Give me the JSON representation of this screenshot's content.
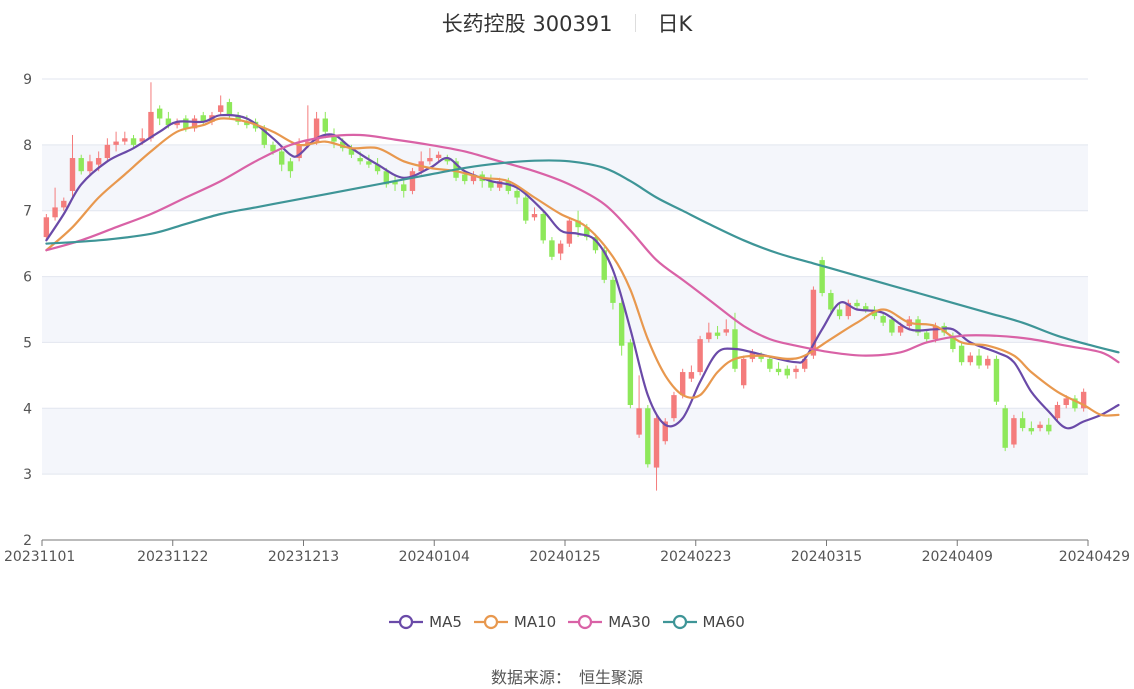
{
  "chart_data": {
    "type": "candlestick",
    "title": "长药控股 300391",
    "subtitle": "日K",
    "ylim": [
      2,
      9
    ],
    "yticks": [
      "2",
      "3",
      "4",
      "5",
      "6",
      "7",
      "8",
      "9"
    ],
    "xticks": [
      "20231101",
      "20231122",
      "20231213",
      "20240104",
      "20240125",
      "20240223",
      "20240315",
      "20240409",
      "20240429"
    ],
    "grid": true,
    "up_color": "#f47c7c",
    "down_color": "#8ee85a",
    "candles": [
      [
        6.6,
        6.9,
        6.55,
        6.95
      ],
      [
        6.9,
        7.05,
        6.85,
        7.35
      ],
      [
        7.05,
        7.15,
        7.0,
        7.2
      ],
      [
        7.3,
        7.8,
        7.2,
        8.15
      ],
      [
        7.8,
        7.6,
        7.55,
        7.85
      ],
      [
        7.6,
        7.75,
        7.55,
        7.85
      ],
      [
        7.7,
        7.8,
        7.6,
        7.9
      ],
      [
        7.8,
        8.0,
        7.75,
        8.1
      ],
      [
        8.0,
        8.05,
        7.9,
        8.2
      ],
      [
        8.05,
        8.1,
        8.0,
        8.2
      ],
      [
        8.1,
        8.0,
        7.95,
        8.15
      ],
      [
        8.05,
        8.1,
        8.0,
        8.25
      ],
      [
        8.1,
        8.5,
        8.05,
        8.95
      ],
      [
        8.55,
        8.4,
        8.3,
        8.6
      ],
      [
        8.4,
        8.3,
        8.25,
        8.5
      ],
      [
        8.3,
        8.35,
        8.25,
        8.4
      ],
      [
        8.4,
        8.25,
        8.2,
        8.45
      ],
      [
        8.25,
        8.4,
        8.2,
        8.45
      ],
      [
        8.45,
        8.35,
        8.3,
        8.5
      ],
      [
        8.35,
        8.45,
        8.3,
        8.5
      ],
      [
        8.5,
        8.6,
        8.45,
        8.75
      ],
      [
        8.65,
        8.45,
        8.4,
        8.7
      ],
      [
        8.45,
        8.35,
        8.3,
        8.5
      ],
      [
        8.35,
        8.3,
        8.25,
        8.45
      ],
      [
        8.35,
        8.25,
        8.2,
        8.4
      ],
      [
        8.25,
        8.0,
        7.95,
        8.3
      ],
      [
        8.0,
        7.9,
        7.85,
        8.05
      ],
      [
        7.9,
        7.7,
        7.6,
        7.95
      ],
      [
        7.75,
        7.6,
        7.5,
        7.8
      ],
      [
        7.8,
        8.0,
        7.75,
        8.1
      ],
      [
        8.0,
        8.05,
        7.95,
        8.6
      ],
      [
        8.05,
        8.4,
        8.0,
        8.5
      ],
      [
        8.4,
        8.2,
        8.1,
        8.5
      ],
      [
        8.15,
        8.05,
        7.95,
        8.25
      ],
      [
        8.05,
        7.95,
        7.9,
        8.1
      ],
      [
        7.95,
        7.85,
        7.8,
        8.0
      ],
      [
        7.8,
        7.75,
        7.7,
        7.9
      ],
      [
        7.75,
        7.7,
        7.65,
        7.85
      ],
      [
        7.7,
        7.6,
        7.55,
        7.8
      ],
      [
        7.6,
        7.4,
        7.35,
        7.65
      ],
      [
        7.45,
        7.4,
        7.3,
        7.55
      ],
      [
        7.4,
        7.3,
        7.2,
        7.5
      ],
      [
        7.3,
        7.6,
        7.25,
        7.65
      ],
      [
        7.6,
        7.75,
        7.55,
        7.9
      ],
      [
        7.75,
        7.8,
        7.7,
        7.95
      ],
      [
        7.8,
        7.85,
        7.75,
        7.9
      ],
      [
        7.8,
        7.75,
        7.7,
        7.85
      ],
      [
        7.75,
        7.5,
        7.45,
        7.8
      ],
      [
        7.55,
        7.45,
        7.4,
        7.6
      ],
      [
        7.45,
        7.55,
        7.4,
        7.6
      ],
      [
        7.55,
        7.45,
        7.35,
        7.6
      ],
      [
        7.45,
        7.35,
        7.3,
        7.55
      ],
      [
        7.35,
        7.45,
        7.3,
        7.5
      ],
      [
        7.45,
        7.3,
        7.25,
        7.5
      ],
      [
        7.3,
        7.2,
        7.1,
        7.35
      ],
      [
        7.2,
        6.85,
        6.8,
        7.25
      ],
      [
        6.9,
        6.95,
        6.85,
        7.05
      ],
      [
        6.95,
        6.55,
        6.5,
        7.0
      ],
      [
        6.55,
        6.3,
        6.25,
        6.6
      ],
      [
        6.35,
        6.5,
        6.25,
        6.55
      ],
      [
        6.5,
        6.85,
        6.45,
        6.9
      ],
      [
        6.85,
        6.75,
        6.6,
        7.0
      ],
      [
        6.75,
        6.6,
        6.55,
        6.8
      ],
      [
        6.6,
        6.4,
        6.35,
        6.65
      ],
      [
        6.4,
        5.95,
        5.9,
        6.45
      ],
      [
        5.95,
        5.6,
        5.5,
        6.0
      ],
      [
        5.6,
        4.95,
        4.8,
        5.65
      ],
      [
        5.0,
        4.05,
        4.0,
        5.05
      ],
      [
        3.6,
        4.0,
        3.55,
        4.5
      ],
      [
        4.0,
        3.15,
        3.1,
        4.05
      ],
      [
        3.1,
        3.85,
        2.75,
        3.9
      ],
      [
        3.5,
        3.8,
        3.45,
        3.85
      ],
      [
        3.85,
        4.2,
        3.8,
        4.25
      ],
      [
        4.2,
        4.55,
        4.15,
        4.6
      ],
      [
        4.45,
        4.55,
        4.4,
        4.65
      ],
      [
        4.55,
        5.05,
        4.5,
        5.1
      ],
      [
        5.05,
        5.15,
        5.0,
        5.3
      ],
      [
        5.15,
        5.1,
        5.05,
        5.25
      ],
      [
        5.15,
        5.2,
        5.1,
        5.35
      ],
      [
        5.2,
        4.6,
        4.55,
        5.45
      ],
      [
        4.35,
        4.75,
        4.3,
        4.8
      ],
      [
        4.75,
        4.85,
        4.7,
        4.9
      ],
      [
        4.8,
        4.75,
        4.7,
        4.85
      ],
      [
        4.75,
        4.6,
        4.55,
        4.8
      ],
      [
        4.6,
        4.55,
        4.5,
        4.7
      ],
      [
        4.6,
        4.5,
        4.45,
        4.65
      ],
      [
        4.55,
        4.6,
        4.45,
        4.65
      ],
      [
        4.6,
        4.75,
        4.55,
        4.8
      ],
      [
        4.8,
        5.8,
        4.75,
        5.85
      ],
      [
        6.25,
        5.75,
        5.7,
        6.3
      ],
      [
        5.75,
        5.5,
        5.45,
        5.8
      ],
      [
        5.5,
        5.4,
        5.35,
        5.6
      ],
      [
        5.4,
        5.6,
        5.35,
        5.65
      ],
      [
        5.6,
        5.55,
        5.5,
        5.65
      ],
      [
        5.55,
        5.5,
        5.45,
        5.6
      ],
      [
        5.5,
        5.4,
        5.35,
        5.55
      ],
      [
        5.4,
        5.3,
        5.25,
        5.45
      ],
      [
        5.35,
        5.15,
        5.1,
        5.4
      ],
      [
        5.15,
        5.25,
        5.1,
        5.3
      ],
      [
        5.25,
        5.35,
        5.2,
        5.4
      ],
      [
        5.35,
        5.15,
        5.1,
        5.4
      ],
      [
        5.15,
        5.05,
        5.0,
        5.2
      ],
      [
        5.05,
        5.25,
        5.0,
        5.3
      ],
      [
        5.25,
        5.15,
        5.1,
        5.3
      ],
      [
        5.1,
        4.9,
        4.85,
        5.15
      ],
      [
        4.95,
        4.7,
        4.65,
        5.0
      ],
      [
        4.7,
        4.8,
        4.65,
        4.85
      ],
      [
        4.8,
        4.65,
        4.6,
        4.9
      ],
      [
        4.65,
        4.75,
        4.6,
        4.8
      ],
      [
        4.75,
        4.1,
        4.05,
        4.8
      ],
      [
        4.0,
        3.4,
        3.35,
        4.05
      ],
      [
        3.45,
        3.85,
        3.4,
        3.9
      ],
      [
        3.85,
        3.7,
        3.65,
        3.95
      ],
      [
        3.7,
        3.65,
        3.6,
        3.8
      ],
      [
        3.7,
        3.75,
        3.65,
        3.8
      ],
      [
        3.75,
        3.65,
        3.6,
        3.85
      ],
      [
        3.85,
        4.05,
        3.8,
        4.1
      ],
      [
        4.05,
        4.15,
        4.0,
        4.2
      ],
      [
        4.15,
        4.0,
        3.95,
        4.2
      ],
      [
        4.0,
        4.25,
        3.95,
        4.3
      ]
    ],
    "series": [
      {
        "name": "MA5",
        "color": "#6a4aa8",
        "anchors": [
          [
            0,
            6.55
          ],
          [
            2,
            6.95
          ],
          [
            4,
            7.4
          ],
          [
            7,
            7.75
          ],
          [
            10,
            7.95
          ],
          [
            13,
            8.2
          ],
          [
            15,
            8.35
          ],
          [
            18,
            8.35
          ],
          [
            20,
            8.45
          ],
          [
            23,
            8.4
          ],
          [
            26,
            8.1
          ],
          [
            28,
            7.85
          ],
          [
            29,
            7.85
          ],
          [
            31,
            8.1
          ],
          [
            33,
            8.15
          ],
          [
            35,
            7.95
          ],
          [
            38,
            7.7
          ],
          [
            41,
            7.5
          ],
          [
            44,
            7.65
          ],
          [
            46,
            7.8
          ],
          [
            48,
            7.6
          ],
          [
            51,
            7.45
          ],
          [
            54,
            7.35
          ],
          [
            57,
            7.0
          ],
          [
            59,
            6.7
          ],
          [
            61,
            6.65
          ],
          [
            63,
            6.55
          ],
          [
            65,
            6.1
          ],
          [
            67,
            5.2
          ],
          [
            69,
            4.2
          ],
          [
            71,
            3.75
          ],
          [
            73,
            3.85
          ],
          [
            75,
            4.4
          ],
          [
            77,
            4.85
          ],
          [
            79,
            4.9
          ],
          [
            81,
            4.85
          ],
          [
            84,
            4.75
          ],
          [
            86,
            4.7
          ],
          [
            87,
            4.75
          ],
          [
            89,
            5.2
          ],
          [
            91,
            5.6
          ],
          [
            93,
            5.5
          ],
          [
            96,
            5.45
          ],
          [
            99,
            5.2
          ],
          [
            102,
            5.2
          ],
          [
            104,
            5.2
          ],
          [
            106,
            5.0
          ],
          [
            109,
            4.85
          ],
          [
            111,
            4.7
          ],
          [
            113,
            4.25
          ],
          [
            115,
            3.95
          ],
          [
            117,
            3.7
          ],
          [
            119,
            3.8
          ],
          [
            121,
            3.9
          ],
          [
            123,
            4.05
          ]
        ]
      },
      {
        "name": "MA10",
        "color": "#e8984e",
        "anchors": [
          [
            0,
            6.4
          ],
          [
            3,
            6.75
          ],
          [
            6,
            7.2
          ],
          [
            9,
            7.55
          ],
          [
            12,
            7.9
          ],
          [
            15,
            8.2
          ],
          [
            18,
            8.3
          ],
          [
            20,
            8.4
          ],
          [
            23,
            8.35
          ],
          [
            26,
            8.2
          ],
          [
            29,
            8.0
          ],
          [
            32,
            8.05
          ],
          [
            35,
            7.95
          ],
          [
            38,
            7.95
          ],
          [
            41,
            7.75
          ],
          [
            44,
            7.65
          ],
          [
            47,
            7.6
          ],
          [
            50,
            7.5
          ],
          [
            53,
            7.45
          ],
          [
            56,
            7.2
          ],
          [
            59,
            6.95
          ],
          [
            62,
            6.75
          ],
          [
            65,
            6.3
          ],
          [
            67,
            5.8
          ],
          [
            69,
            5.05
          ],
          [
            71,
            4.5
          ],
          [
            73,
            4.2
          ],
          [
            75,
            4.2
          ],
          [
            77,
            4.55
          ],
          [
            79,
            4.75
          ],
          [
            82,
            4.8
          ],
          [
            85,
            4.75
          ],
          [
            87,
            4.8
          ],
          [
            90,
            5.05
          ],
          [
            93,
            5.3
          ],
          [
            96,
            5.5
          ],
          [
            99,
            5.3
          ],
          [
            102,
            5.25
          ],
          [
            105,
            5.0
          ],
          [
            108,
            4.95
          ],
          [
            111,
            4.8
          ],
          [
            113,
            4.55
          ],
          [
            116,
            4.25
          ],
          [
            119,
            4.05
          ],
          [
            121,
            3.9
          ],
          [
            123,
            3.9
          ]
        ]
      },
      {
        "name": "MA30",
        "color": "#d962a6",
        "anchors": [
          [
            0,
            6.4
          ],
          [
            4,
            6.55
          ],
          [
            8,
            6.75
          ],
          [
            12,
            6.95
          ],
          [
            16,
            7.2
          ],
          [
            20,
            7.45
          ],
          [
            24,
            7.75
          ],
          [
            28,
            8.0
          ],
          [
            32,
            8.12
          ],
          [
            36,
            8.15
          ],
          [
            40,
            8.08
          ],
          [
            44,
            8.0
          ],
          [
            48,
            7.9
          ],
          [
            52,
            7.75
          ],
          [
            56,
            7.6
          ],
          [
            60,
            7.4
          ],
          [
            64,
            7.1
          ],
          [
            67,
            6.7
          ],
          [
            70,
            6.25
          ],
          [
            73,
            5.95
          ],
          [
            76,
            5.65
          ],
          [
            80,
            5.25
          ],
          [
            83,
            5.05
          ],
          [
            86,
            4.95
          ],
          [
            90,
            4.85
          ],
          [
            94,
            4.8
          ],
          [
            98,
            4.85
          ],
          [
            101,
            5.0
          ],
          [
            105,
            5.1
          ],
          [
            109,
            5.1
          ],
          [
            113,
            5.05
          ],
          [
            117,
            4.95
          ],
          [
            121,
            4.85
          ],
          [
            123,
            4.7
          ]
        ]
      },
      {
        "name": "MA60",
        "color": "#3e9597",
        "anchors": [
          [
            0,
            6.5
          ],
          [
            6,
            6.55
          ],
          [
            12,
            6.65
          ],
          [
            16,
            6.8
          ],
          [
            20,
            6.95
          ],
          [
            24,
            7.05
          ],
          [
            28,
            7.15
          ],
          [
            32,
            7.25
          ],
          [
            36,
            7.35
          ],
          [
            40,
            7.45
          ],
          [
            44,
            7.55
          ],
          [
            48,
            7.65
          ],
          [
            52,
            7.72
          ],
          [
            56,
            7.76
          ],
          [
            60,
            7.75
          ],
          [
            64,
            7.65
          ],
          [
            67,
            7.45
          ],
          [
            70,
            7.2
          ],
          [
            73,
            7.0
          ],
          [
            76,
            6.8
          ],
          [
            80,
            6.55
          ],
          [
            84,
            6.35
          ],
          [
            88,
            6.2
          ],
          [
            92,
            6.05
          ],
          [
            96,
            5.9
          ],
          [
            100,
            5.75
          ],
          [
            104,
            5.6
          ],
          [
            108,
            5.45
          ],
          [
            112,
            5.3
          ],
          [
            116,
            5.1
          ],
          [
            120,
            4.95
          ],
          [
            123,
            4.85
          ]
        ]
      }
    ]
  },
  "source_label": "数据来源：",
  "source_name": "恒生聚源"
}
